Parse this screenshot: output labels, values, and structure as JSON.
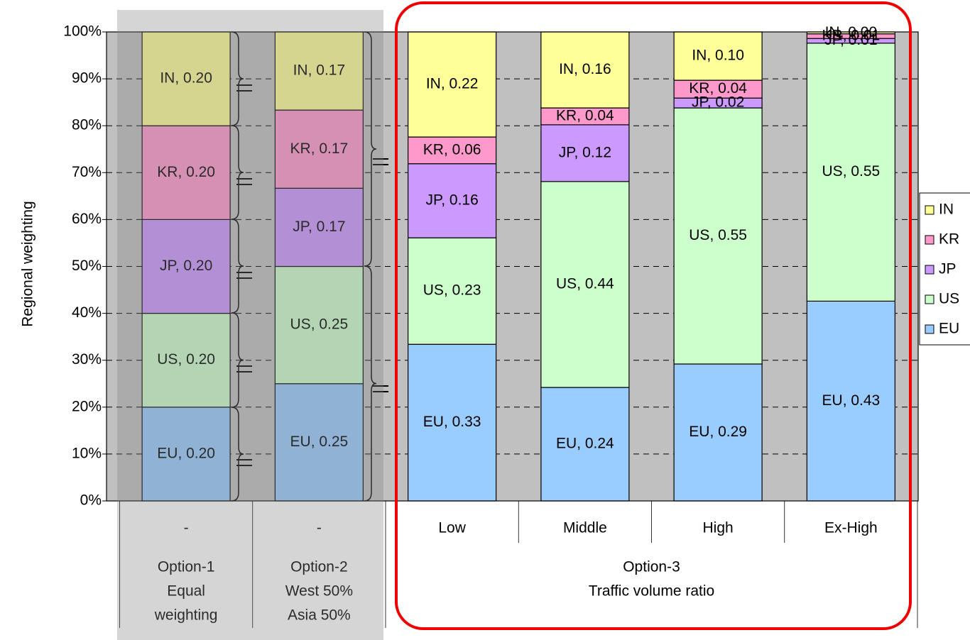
{
  "chart_data": {
    "type": "bar",
    "stacked": true,
    "ylabel": "Regional weighting",
    "categories": [
      "-",
      "-",
      "Low",
      "Middle",
      "High",
      "Ex-High"
    ],
    "groups": [
      [
        "Option-1",
        "Equal",
        "weighting"
      ],
      [
        "Option-2",
        "West 50%",
        "Asia 50%"
      ],
      [
        "Option-3",
        "Traffic volume ratio"
      ]
    ],
    "group_spans": [
      1,
      1,
      4
    ],
    "series": [
      {
        "name": "EU",
        "color": "#99ccff",
        "values": [
          20,
          25,
          33.4,
          24.2,
          29.2,
          42.6
        ],
        "value_labels": [
          "EU, 0.20",
          "EU, 0.25",
          "EU, 0.33",
          "EU, 0.24",
          "EU, 0.29",
          "EU, 0.43"
        ]
      },
      {
        "name": "US",
        "color": "#ccffcc",
        "values": [
          20,
          25,
          22.7,
          43.9,
          54.6,
          55.0
        ],
        "value_labels": [
          "US, 0.20",
          "US, 0.25",
          "US, 0.23",
          "US, 0.44",
          "US, 0.55",
          "US, 0.55"
        ]
      },
      {
        "name": "JP",
        "color": "#cc99ff",
        "values": [
          20,
          16.67,
          15.8,
          12.1,
          2.1,
          1.0
        ],
        "value_labels": [
          "JP, 0.20",
          "JP, 0.17",
          "JP, 0.16",
          "JP, 0.12",
          "JP, 0.02",
          "JP, 0.01"
        ]
      },
      {
        "name": "KR",
        "color": "#ff99cc",
        "values": [
          20,
          16.67,
          5.7,
          3.6,
          3.8,
          1.0
        ],
        "value_labels": [
          "KR, 0.20",
          "KR, 0.17",
          "KR, 0.06",
          "KR, 0.04",
          "KR, 0.04",
          "KR, 0.01"
        ]
      },
      {
        "name": "IN",
        "color": "#ffff99",
        "values": [
          20,
          16.66,
          22.4,
          16.2,
          10.3,
          0.4
        ],
        "value_labels": [
          "IN, 0.20",
          "IN, 0.17",
          "IN, 0.22",
          "IN, 0.16",
          "IN, 0.10",
          "IN, 0.00"
        ]
      }
    ],
    "ylim": [
      0,
      100
    ],
    "yticks": [
      {
        "value": 0,
        "label": "0%"
      },
      {
        "value": 10,
        "label": "10%"
      },
      {
        "value": 20,
        "label": "20%"
      },
      {
        "value": 30,
        "label": "30%"
      },
      {
        "value": 40,
        "label": "40%"
      },
      {
        "value": 50,
        "label": "50%"
      },
      {
        "value": 60,
        "label": "60%"
      },
      {
        "value": 70,
        "label": "70%"
      },
      {
        "value": 80,
        "label": "80%"
      },
      {
        "value": 90,
        "label": "90%"
      },
      {
        "value": 100,
        "label": "100%"
      }
    ],
    "grid": true,
    "legend": "right"
  }
}
